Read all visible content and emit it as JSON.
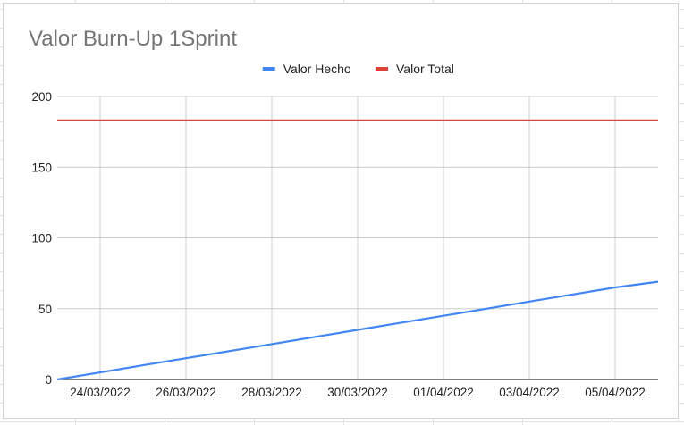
{
  "chart_data": {
    "type": "line",
    "title": "Valor Burn-Up 1Sprint",
    "xlabel": "",
    "ylabel": "",
    "x": [
      "23/03/2022",
      "24/03/2022",
      "25/03/2022",
      "26/03/2022",
      "27/03/2022",
      "28/03/2022",
      "29/03/2022",
      "30/03/2022",
      "31/03/2022",
      "01/04/2022",
      "02/04/2022",
      "03/04/2022",
      "04/04/2022",
      "05/04/2022",
      "06/04/2022"
    ],
    "xticks": [
      "24/03/2022",
      "26/03/2022",
      "28/03/2022",
      "30/03/2022",
      "01/04/2022",
      "03/04/2022",
      "05/04/2022"
    ],
    "ylim": [
      0,
      200
    ],
    "yticks": [
      "0",
      "50",
      "100",
      "150",
      "200"
    ],
    "grid": true,
    "legend_position": "top",
    "series": [
      {
        "name": "Valor Hecho",
        "color": "#4285f4",
        "values": [
          0,
          5,
          10,
          15,
          20,
          25,
          30,
          35,
          40,
          45,
          50,
          55,
          60,
          65,
          69
        ]
      },
      {
        "name": "Valor Total",
        "color": "#db4437",
        "values": [
          183,
          183,
          183,
          183,
          183,
          183,
          183,
          183,
          183,
          183,
          183,
          183,
          183,
          183,
          183
        ]
      }
    ]
  }
}
